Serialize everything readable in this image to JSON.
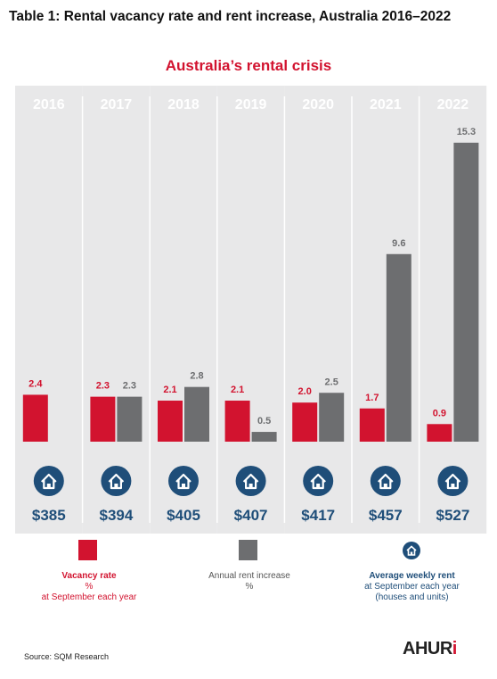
{
  "heading": "Table 1: Rental vacancy rate and rent increase, Australia 2016–2022",
  "chart_data": {
    "type": "bar",
    "title": "Australia’s rental crisis",
    "categories": [
      "2016",
      "2017",
      "2018",
      "2019",
      "2020",
      "2021",
      "2022"
    ],
    "series": [
      {
        "name": "Vacancy rate",
        "color": "#d2132f",
        "values": [
          2.4,
          2.3,
          2.1,
          2.1,
          2.0,
          1.7,
          0.9
        ]
      },
      {
        "name": "Annual rent increase",
        "color": "#6d6e70",
        "values": [
          null,
          2.3,
          2.8,
          0.5,
          2.5,
          9.6,
          15.3
        ]
      }
    ],
    "weekly_rent": [
      "$385",
      "$394",
      "$405",
      "$407",
      "$417",
      "$457",
      "$527"
    ],
    "ylim": [
      0,
      15.3
    ],
    "grid": false,
    "legend_placement": "bottom"
  },
  "colors": {
    "vacancy": "#d2132f",
    "rent_increase": "#6d6e70",
    "rent_icon": "#1f4e79",
    "panel": "#e8e8e9",
    "year_text": "#ffffff"
  },
  "icons": {
    "rent": "house-icon"
  },
  "legend": {
    "vacancy": {
      "line1": "Vacancy rate",
      "line2": "%",
      "line3": "at September each year"
    },
    "rent_increase": {
      "line1": "Annual rent increase",
      "line2": "%"
    },
    "weekly_rent": {
      "line1": "Average weekly rent",
      "line2": "at September each year",
      "line3": "(houses and units)"
    }
  },
  "source": "Source: SQM Research",
  "logo": {
    "main": "AHUR",
    "accent": "i"
  }
}
